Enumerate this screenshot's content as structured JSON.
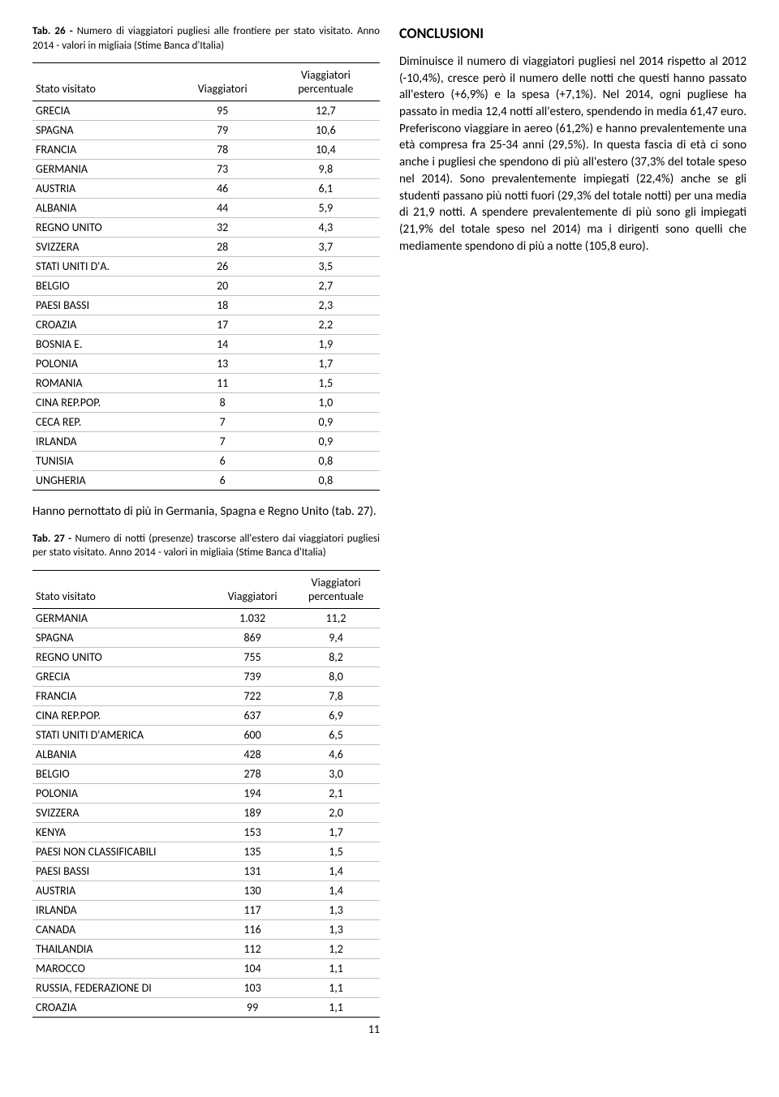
{
  "tab26": {
    "caption_prefix": "Tab. 26 - ",
    "caption_body": "Numero di viaggiatori pugliesi alle frontiere per stato visitato. Anno 2014 - valori in migliaia (Stime Banca d'Italia)",
    "col_state": "Stato visitato",
    "col_v": "Viaggiatori",
    "col_vp1": "Viaggiatori",
    "col_vp2": "percentuale",
    "rows": [
      {
        "s": "GRECIA",
        "v": "95",
        "p": "12,7"
      },
      {
        "s": "SPAGNA",
        "v": "79",
        "p": "10,6"
      },
      {
        "s": "FRANCIA",
        "v": "78",
        "p": "10,4"
      },
      {
        "s": "GERMANIA",
        "v": "73",
        "p": "9,8"
      },
      {
        "s": "AUSTRIA",
        "v": "46",
        "p": "6,1"
      },
      {
        "s": "ALBANIA",
        "v": "44",
        "p": "5,9"
      },
      {
        "s": "REGNO UNITO",
        "v": "32",
        "p": "4,3"
      },
      {
        "s": "SVIZZERA",
        "v": "28",
        "p": "3,7"
      },
      {
        "s": "STATI UNITI D'A.",
        "v": "26",
        "p": "3,5"
      },
      {
        "s": "BELGIO",
        "v": "20",
        "p": "2,7"
      },
      {
        "s": "PAESI BASSI",
        "v": "18",
        "p": "2,3"
      },
      {
        "s": "CROAZIA",
        "v": "17",
        "p": "2,2"
      },
      {
        "s": "BOSNIA E.",
        "v": "14",
        "p": "1,9"
      },
      {
        "s": "POLONIA",
        "v": "13",
        "p": "1,7"
      },
      {
        "s": "ROMANIA",
        "v": "11",
        "p": "1,5"
      },
      {
        "s": "CINA REP.POP.",
        "v": "8",
        "p": "1,0"
      },
      {
        "s": "CECA REP.",
        "v": "7",
        "p": "0,9"
      },
      {
        "s": "IRLANDA",
        "v": "7",
        "p": "0,9"
      },
      {
        "s": "TUNISIA",
        "v": "6",
        "p": "0,8"
      },
      {
        "s": "UNGHERIA",
        "v": "6",
        "p": "0,8"
      }
    ]
  },
  "conclusioni": {
    "title": "CONCLUSIONI",
    "body": "Diminuisce il numero di viaggiatori pugliesi nel 2014 rispetto al 2012 (-10,4%), cresce però il numero delle notti che questi hanno passato all'estero (+6,9%) e la spesa (+7,1%). Nel 2014, ogni pugliese ha passato in media 12,4 notti all'estero, spendendo in media 61,47 euro. Preferiscono viaggiare in aereo (61,2%) e hanno prevalentemente una età compresa fra 25-34 anni (29,5%). In questa fascia di età ci sono anche i pugliesi che spendono di più all'estero (37,3% del totale speso nel 2014). Sono prevalentemente impiegati (22,4%) anche se gli studenti passano più notti fuori (29,3% del totale notti) per una media di 21,9 notti. A spendere prevalentemente di più sono gli impiegati (21,9% del totale speso nel 2014) ma i dirigenti sono quelli che mediamente spendono di più a notte (105,8 euro)."
  },
  "midtext": "Hanno pernottato di più in Germania, Spagna e Regno Unito (tab. 27).",
  "tab27": {
    "caption_prefix": "Tab. 27 - ",
    "caption_body": "Numero di notti (presenze) trascorse all'estero dai viaggiatori pugliesi per stato visitato. Anno 2014 - valori in migliaia (Stime Banca d'Italia)",
    "col_state": "Stato visitato",
    "col_v": "Viaggiatori",
    "col_vp1": "Viaggiatori",
    "col_vp2": "percentuale",
    "rows": [
      {
        "s": "GERMANIA",
        "v": "1.032",
        "p": "11,2"
      },
      {
        "s": "SPAGNA",
        "v": "869",
        "p": "9,4"
      },
      {
        "s": "REGNO UNITO",
        "v": "755",
        "p": "8,2"
      },
      {
        "s": "GRECIA",
        "v": "739",
        "p": "8,0"
      },
      {
        "s": "FRANCIA",
        "v": "722",
        "p": "7,8"
      },
      {
        "s": "CINA REP.POP.",
        "v": "637",
        "p": "6,9"
      },
      {
        "s": "STATI UNITI D'AMERICA",
        "v": "600",
        "p": "6,5"
      },
      {
        "s": "ALBANIA",
        "v": "428",
        "p": "4,6"
      },
      {
        "s": "BELGIO",
        "v": "278",
        "p": "3,0"
      },
      {
        "s": "POLONIA",
        "v": "194",
        "p": "2,1"
      },
      {
        "s": "SVIZZERA",
        "v": "189",
        "p": "2,0"
      },
      {
        "s": "KENYA",
        "v": "153",
        "p": "1,7"
      },
      {
        "s": "PAESI NON CLASSIFICABILI",
        "v": "135",
        "p": "1,5"
      },
      {
        "s": "PAESI BASSI",
        "v": "131",
        "p": "1,4"
      },
      {
        "s": "AUSTRIA",
        "v": "130",
        "p": "1,4"
      },
      {
        "s": "IRLANDA",
        "v": "117",
        "p": "1,3"
      },
      {
        "s": "CANADA",
        "v": "116",
        "p": "1,3"
      },
      {
        "s": "THAILANDIA",
        "v": "112",
        "p": "1,2"
      },
      {
        "s": "MAROCCO",
        "v": "104",
        "p": "1,1"
      },
      {
        "s": "RUSSIA, FEDERAZIONE DI",
        "v": "103",
        "p": "1,1"
      },
      {
        "s": "CROAZIA",
        "v": "99",
        "p": "1,1"
      }
    ]
  },
  "page_number": "11"
}
